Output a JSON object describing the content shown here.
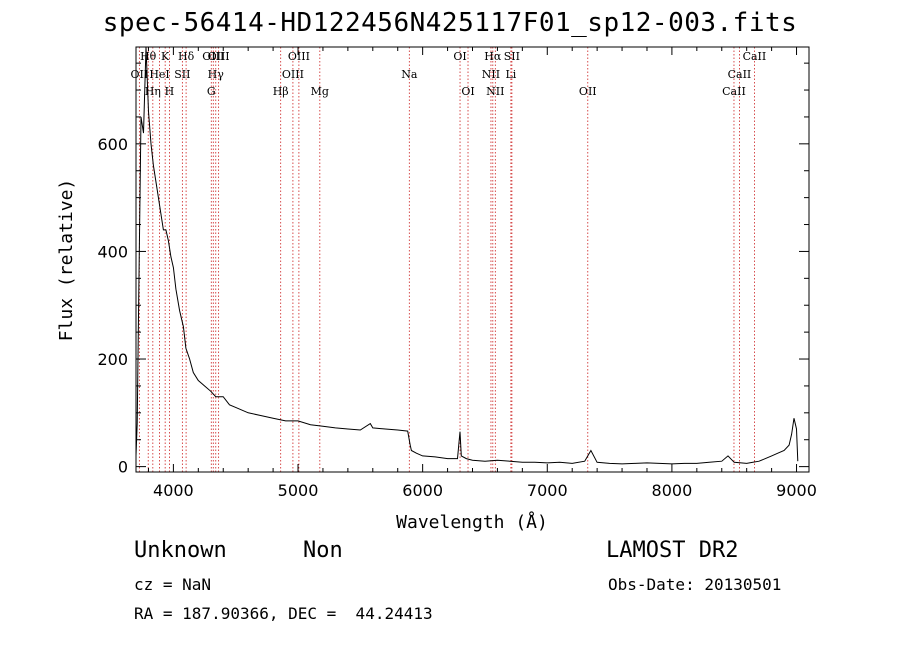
{
  "title": "spec-56414-HD122456N425117F01_sp12-003.fits",
  "info": {
    "class": "Unknown",
    "subclass": "Non",
    "survey": "LAMOST DR2",
    "cz": "cz = NaN",
    "obs_date": "Obs-Date: 20130501",
    "coords": "RA = 187.90366, DEC =  44.24413"
  },
  "chart_data": {
    "type": "line",
    "xlabel": "Wavelength (Å)",
    "ylabel": "Flux (relative)",
    "xlim": [
      3700,
      9100
    ],
    "ylim": [
      -10,
      780
    ],
    "xticks": [
      4000,
      5000,
      6000,
      7000,
      8000,
      9000
    ],
    "yticks": [
      0,
      200,
      400,
      600
    ],
    "series": [
      {
        "x": [
          3700,
          3710,
          3720,
          3740,
          3760,
          3780,
          3800,
          3820,
          3840,
          3860,
          3880,
          3900,
          3920,
          3940,
          3960,
          3980,
          4000,
          4020,
          4050,
          4080,
          4100,
          4130,
          4160,
          4200,
          4250,
          4300,
          4340,
          4400,
          4450,
          4500,
          4600,
          4700,
          4800,
          4900,
          5000,
          5100,
          5200,
          5300,
          5400,
          5500,
          5580,
          5600,
          5700,
          5800,
          5880,
          5900,
          5910,
          5950,
          6000,
          6100,
          6200,
          6280,
          6300,
          6310,
          6350,
          6400,
          6500,
          6600,
          6700,
          6800,
          6900,
          7000,
          7100,
          7200,
          7300,
          7350,
          7400,
          7500,
          7600,
          7700,
          7800,
          7900,
          8000,
          8100,
          8200,
          8300,
          8400,
          8450,
          8500,
          8600,
          8650,
          8700,
          8750,
          8800,
          8850,
          8900,
          8940,
          8960,
          8980,
          9000,
          9010
        ],
        "y": [
          20,
          80,
          280,
          650,
          620,
          780,
          660,
          600,
          560,
          530,
          500,
          470,
          440,
          440,
          420,
          390,
          370,
          330,
          290,
          260,
          220,
          200,
          175,
          160,
          150,
          140,
          130,
          130,
          115,
          110,
          100,
          95,
          90,
          85,
          85,
          78,
          75,
          72,
          70,
          68,
          80,
          72,
          70,
          68,
          66,
          40,
          30,
          25,
          20,
          18,
          15,
          15,
          65,
          20,
          15,
          12,
          10,
          12,
          10,
          8,
          8,
          7,
          8,
          6,
          10,
          30,
          8,
          6,
          5,
          6,
          7,
          6,
          5,
          6,
          6,
          8,
          10,
          20,
          8,
          6,
          8,
          10,
          15,
          20,
          25,
          30,
          40,
          60,
          90,
          70,
          10
        ]
      }
    ],
    "lines": [
      {
        "label": "OII",
        "x": 3727,
        "row": 1
      },
      {
        "label": "Hθ",
        "x": 3798,
        "row": 0
      },
      {
        "label": "Hη",
        "x": 3835,
        "row": 2
      },
      {
        "label": "HeI",
        "x": 3889,
        "row": 1
      },
      {
        "label": "K",
        "x": 3934,
        "row": 0
      },
      {
        "label": "H",
        "x": 3968,
        "row": 2
      },
      {
        "label": "SII",
        "x": 4072,
        "row": 1
      },
      {
        "label": "Hδ",
        "x": 4102,
        "row": 0
      },
      {
        "label": "G",
        "x": 4304,
        "row": 2
      },
      {
        "label": "OIII",
        "x": 4320,
        "row": 0
      },
      {
        "label": "Hγ",
        "x": 4340,
        "row": 1
      },
      {
        "label": "OIII",
        "x": 4363,
        "row": 0
      },
      {
        "label": "Hβ",
        "x": 4861,
        "row": 2
      },
      {
        "label": "OIII",
        "x": 4959,
        "row": 1
      },
      {
        "label": "OIII",
        "x": 5007,
        "row": 0
      },
      {
        "label": "Mg",
        "x": 5175,
        "row": 2
      },
      {
        "label": "Na",
        "x": 5893,
        "row": 1
      },
      {
        "label": "OI",
        "x": 6300,
        "row": 0
      },
      {
        "label": "OI",
        "x": 6364,
        "row": 2
      },
      {
        "label": "NII",
        "x": 6548,
        "row": 1
      },
      {
        "label": "Hα",
        "x": 6563,
        "row": 0
      },
      {
        "label": "NII",
        "x": 6583,
        "row": 2
      },
      {
        "label": "Li",
        "x": 6708,
        "row": 1
      },
      {
        "label": "SII",
        "x": 6716,
        "row": 0
      },
      {
        "label": "OII",
        "x": 7325,
        "row": 2
      },
      {
        "label": "CaII",
        "x": 8498,
        "row": 2
      },
      {
        "label": "CaII",
        "x": 8542,
        "row": 1
      },
      {
        "label": "CaII",
        "x": 8662,
        "row": 0
      }
    ]
  }
}
